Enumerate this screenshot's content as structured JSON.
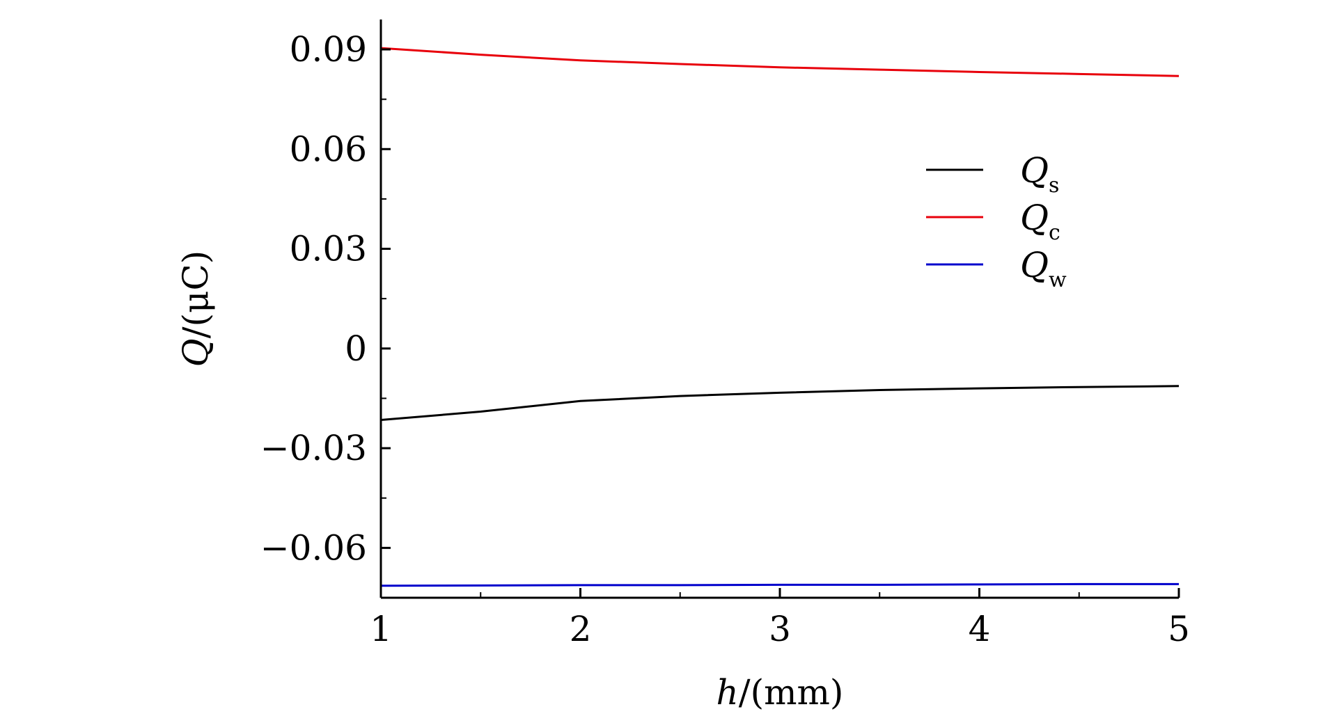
{
  "chart_data": {
    "type": "line",
    "xlabel": {
      "var": "h",
      "unit": "/(mm)"
    },
    "ylabel": {
      "var": "Q",
      "unit": "/(μC)"
    },
    "xlim": [
      1,
      5
    ],
    "ylim": [
      -0.075,
      0.099
    ],
    "x_ticks": [
      1,
      2,
      3,
      4,
      5
    ],
    "x_tick_labels": [
      "1",
      "2",
      "3",
      "4",
      "5"
    ],
    "y_ticks": [
      -0.06,
      -0.03,
      0,
      0.03,
      0.06,
      0.09
    ],
    "y_tick_labels": [
      "−0.06",
      "−0.03",
      "0",
      "0.03",
      "0.06",
      "0.09"
    ],
    "grid": false,
    "legend_position": "right, upper-middle",
    "series": [
      {
        "name": "Q",
        "subscript": "s",
        "color": "#000000",
        "x": [
          1,
          1.5,
          2,
          2.5,
          3,
          3.5,
          4,
          4.5,
          5
        ],
        "y": [
          -0.0215,
          -0.019,
          -0.0158,
          -0.0143,
          -0.0133,
          -0.0125,
          -0.012,
          -0.0116,
          -0.0113
        ]
      },
      {
        "name": "Q",
        "subscript": "c",
        "color": "#e8000b",
        "x": [
          1,
          1.5,
          2,
          2.5,
          3,
          3.5,
          4,
          4.5,
          5
        ],
        "y": [
          0.0904,
          0.0884,
          0.0867,
          0.0856,
          0.0846,
          0.0839,
          0.0832,
          0.0826,
          0.082
        ]
      },
      {
        "name": "Q",
        "subscript": "w",
        "color": "#0000cc",
        "x": [
          1,
          1.5,
          2,
          2.5,
          3,
          3.5,
          4,
          4.5,
          5
        ],
        "y": [
          -0.0714,
          -0.0713,
          -0.0712,
          -0.0712,
          -0.0711,
          -0.0711,
          -0.071,
          -0.0709,
          -0.0709
        ]
      }
    ]
  }
}
